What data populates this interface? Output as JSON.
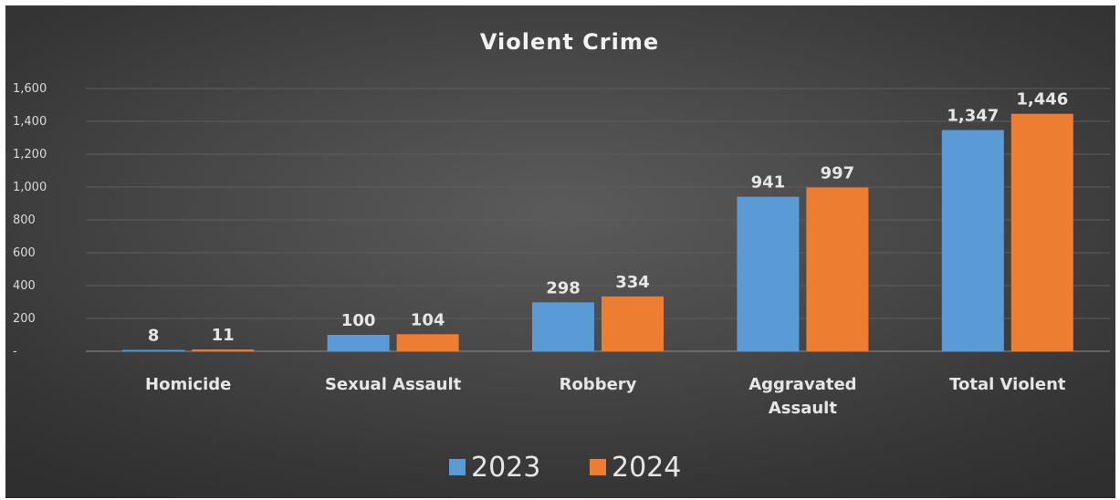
{
  "chart_data": {
    "type": "bar",
    "title": "Violent Crime",
    "xlabel": "",
    "ylabel": "",
    "categories": [
      "Homicide",
      "Sexual Assault",
      "Robbery",
      "Aggravated Assault",
      "Total Violent"
    ],
    "category_lines": [
      [
        "Homicide"
      ],
      [
        "Sexual Assault"
      ],
      [
        "Robbery"
      ],
      [
        "Aggravated",
        "Assault"
      ],
      [
        "Total Violent"
      ]
    ],
    "series": [
      {
        "name": "2023",
        "values": [
          8,
          100,
          298,
          941,
          1347
        ],
        "value_labels": [
          "8",
          "100",
          "298",
          "941",
          "1,347"
        ],
        "color": "#5b9bd5"
      },
      {
        "name": "2024",
        "values": [
          11,
          104,
          334,
          997,
          1446
        ],
        "value_labels": [
          "11",
          "104",
          "334",
          "997",
          "1,446"
        ],
        "color": "#ed7d31"
      }
    ],
    "ylim": [
      0,
      1600
    ],
    "yticks": [
      0,
      200,
      400,
      600,
      800,
      1000,
      1200,
      1400,
      1600
    ],
    "ytick_labels": [
      "-",
      "200",
      "400",
      "600",
      "800",
      "1,000",
      "1,200",
      "1,400",
      "1,600"
    ],
    "grid": true,
    "legend_position": "bottom"
  }
}
